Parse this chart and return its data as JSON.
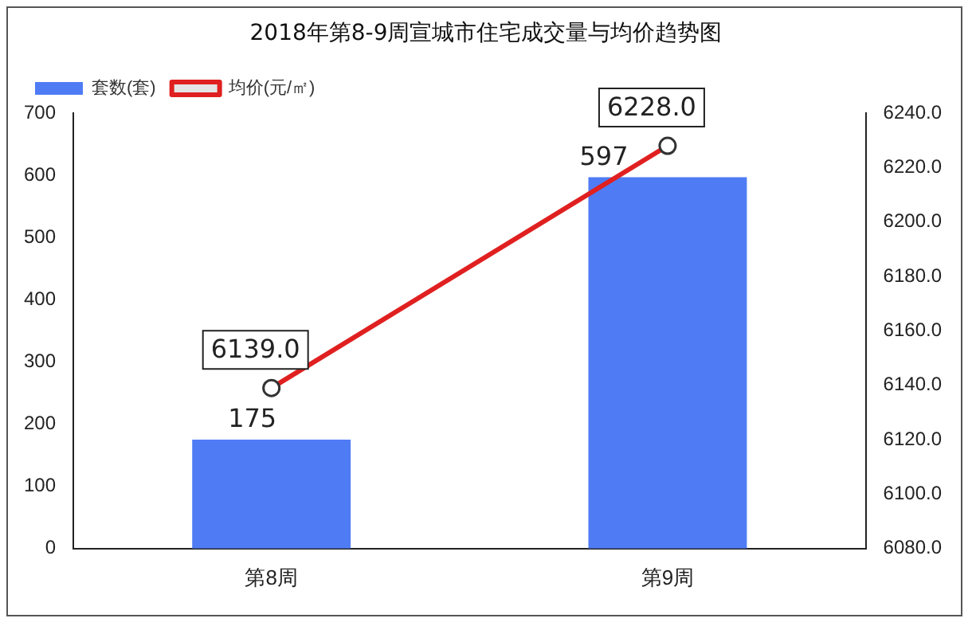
{
  "chart_data": {
    "type": "bar",
    "title": "2018年第8-9周宣城市住宅成交量与均价趋势图",
    "categories": [
      "第8周",
      "第9周"
    ],
    "series": [
      {
        "name": "套数(套)",
        "color": "#4f7cf5",
        "values": [
          175,
          597
        ],
        "value_labels": [
          "175",
          "597"
        ]
      },
      {
        "name": "均价(元/㎡)",
        "type": "line",
        "axis": "y2",
        "color": "#e02020",
        "values": [
          6139.0,
          6228.0
        ],
        "value_labels": [
          "6139.0",
          "6228.0"
        ],
        "marker": "circle"
      }
    ],
    "ylim": [
      0,
      700
    ],
    "yticks": [
      0,
      100,
      200,
      300,
      400,
      500,
      600,
      700
    ],
    "y2lim": [
      6080,
      6240
    ],
    "y2ticks": [
      {
        "value": 6080,
        "label": "6080.0"
      },
      {
        "value": 6100,
        "label": "6100.0"
      },
      {
        "value": 6120,
        "label": "6120.0"
      },
      {
        "value": 6140,
        "label": "6140.0"
      },
      {
        "value": 6160,
        "label": "6160.0"
      },
      {
        "value": 6180,
        "label": "6180.0"
      },
      {
        "value": 6200,
        "label": "6200.0"
      },
      {
        "value": 6220,
        "label": "6220.0"
      },
      {
        "value": 6240,
        "label": "6240.0"
      }
    ],
    "grid": false,
    "legend": "top left"
  }
}
